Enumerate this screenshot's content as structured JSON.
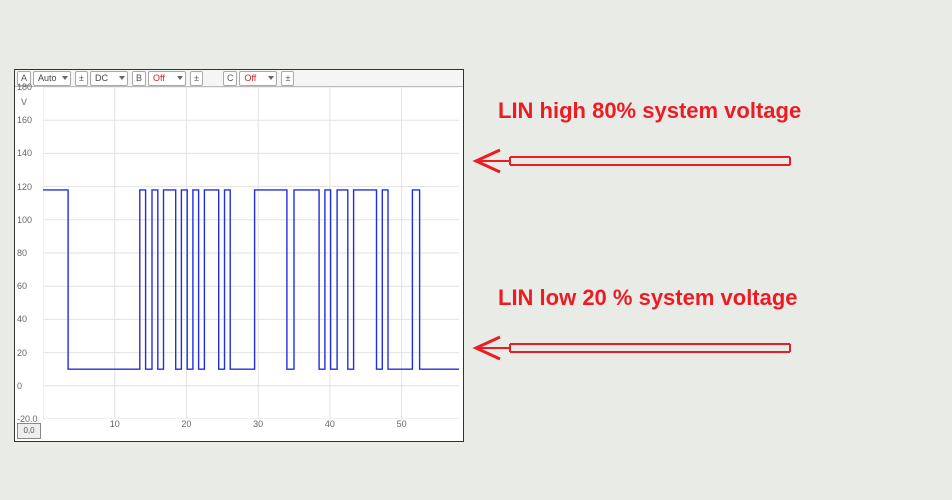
{
  "toolbar": {
    "chA": {
      "label": "A",
      "mode": "Auto",
      "coupling": "DC"
    },
    "chB": {
      "label": "B",
      "mode": "Off"
    },
    "chC": {
      "label": "C",
      "mode": "Off"
    }
  },
  "chart": {
    "type": "line",
    "background_color": "#ffffff",
    "grid_color": "#e2e2e2",
    "trace_color": "#2030e0",
    "y_unit": "V",
    "x_unit": "ms",
    "xlim": [
      0,
      58
    ],
    "ylim": [
      -20,
      180
    ],
    "x_ticks": [
      0,
      10,
      20,
      30,
      40,
      50
    ],
    "y_ticks": [
      -20,
      0,
      20,
      40,
      60,
      80,
      100,
      120,
      140,
      160,
      180
    ],
    "high_level": 118,
    "low_level": 10,
    "edges": [
      [
        0,
        118
      ],
      [
        3.5,
        118
      ],
      [
        3.5,
        10
      ],
      [
        13.5,
        10
      ],
      [
        13.5,
        118
      ],
      [
        14.3,
        118
      ],
      [
        14.3,
        10
      ],
      [
        15.2,
        10
      ],
      [
        15.2,
        118
      ],
      [
        16.0,
        118
      ],
      [
        16.0,
        10
      ],
      [
        16.8,
        10
      ],
      [
        16.8,
        118
      ],
      [
        18.5,
        118
      ],
      [
        18.5,
        10
      ],
      [
        19.3,
        10
      ],
      [
        19.3,
        118
      ],
      [
        20.1,
        118
      ],
      [
        20.1,
        10
      ],
      [
        20.9,
        10
      ],
      [
        20.9,
        118
      ],
      [
        21.7,
        118
      ],
      [
        21.7,
        10
      ],
      [
        22.5,
        10
      ],
      [
        22.5,
        118
      ],
      [
        24.5,
        118
      ],
      [
        24.5,
        10
      ],
      [
        25.3,
        10
      ],
      [
        25.3,
        118
      ],
      [
        26.1,
        118
      ],
      [
        26.1,
        10
      ],
      [
        29.5,
        10
      ],
      [
        29.5,
        118
      ],
      [
        34.0,
        118
      ],
      [
        34.0,
        10
      ],
      [
        35.0,
        10
      ],
      [
        35.0,
        118
      ],
      [
        38.5,
        118
      ],
      [
        38.5,
        10
      ],
      [
        39.3,
        10
      ],
      [
        39.3,
        118
      ],
      [
        40.1,
        118
      ],
      [
        40.1,
        10
      ],
      [
        41.0,
        10
      ],
      [
        41.0,
        118
      ],
      [
        42.5,
        118
      ],
      [
        42.5,
        10
      ],
      [
        43.3,
        10
      ],
      [
        43.3,
        118
      ],
      [
        46.5,
        118
      ],
      [
        46.5,
        10
      ],
      [
        47.3,
        10
      ],
      [
        47.3,
        118
      ],
      [
        48.1,
        118
      ],
      [
        48.1,
        10
      ],
      [
        51.5,
        10
      ],
      [
        51.5,
        118
      ],
      [
        52.5,
        118
      ],
      [
        52.5,
        10
      ],
      [
        58,
        10
      ]
    ]
  },
  "annotations": {
    "high": {
      "text": "LIN high 80% system voltage",
      "fontsize": 22,
      "color": "#ed1c24"
    },
    "low": {
      "text": "LIN low 20 % system voltage",
      "fontsize": 22,
      "color": "#ed1c24"
    }
  },
  "origin_label": "0,0"
}
